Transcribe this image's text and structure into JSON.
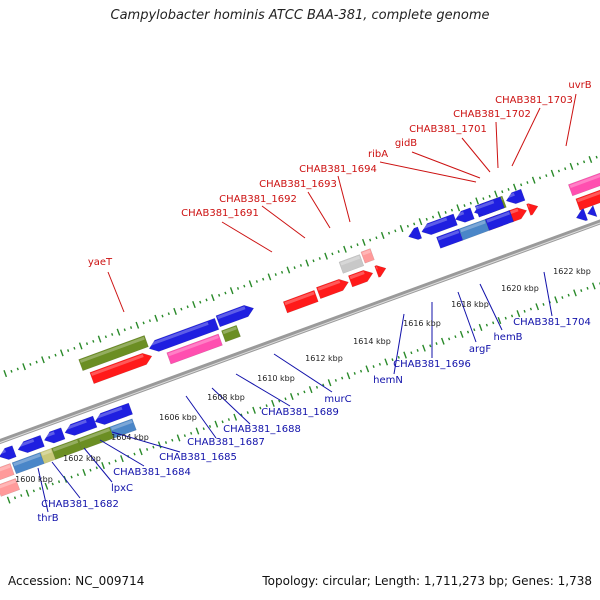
{
  "title": "Campylobacter hominis ATCC BAA-381, complete genome",
  "footer": {
    "accession": "Accession: NC_009714",
    "summary": "Topology: circular; Length: 1,711,273 bp; Genes: 1,738"
  },
  "colors": {
    "backbone": "#9a9a9a",
    "tick": "#2a8a2a",
    "red": "#ff1a1a",
    "pink": "#ff4fb0",
    "blue": "#1f1fe0",
    "steelblue": "#4a86c8",
    "olive": "#6b8e23",
    "khaki": "#c8c87a",
    "lightred": "#ff9a9a",
    "gray": "#c8c8c8",
    "label_top": "#cc1111",
    "label_bottom": "#1111aa"
  },
  "scale_labels": [
    {
      "text": "1600 kbp",
      "kbp": 1600
    },
    {
      "text": "1602 kbp",
      "kbp": 1602
    },
    {
      "text": "1604 kbp",
      "kbp": 1604
    },
    {
      "text": "1606 kbp",
      "kbp": 1606
    },
    {
      "text": "1608 kbp",
      "kbp": 1608
    },
    {
      "text": "1610 kbp",
      "kbp": 1610
    },
    {
      "text": "1612 kbp",
      "kbp": 1612
    },
    {
      "text": "1614 kbp",
      "kbp": 1614
    },
    {
      "text": "1616 kbp",
      "kbp": 1616
    },
    {
      "text": "1618 kbp",
      "kbp": 1618
    },
    {
      "text": "1620 kbp",
      "kbp": 1620
    },
    {
      "text": "1622 kbp",
      "kbp": 1622
    }
  ],
  "top_labels": [
    "yaeT",
    "CHAB381_1691",
    "CHAB381_1692",
    "CHAB381_1693",
    "CHAB381_1694",
    "ribA",
    "gidB",
    "CHAB381_1701",
    "CHAB381_1702",
    "CHAB381_1703",
    "uvrB"
  ],
  "bottom_labels": [
    "thrB",
    "CHAB381_1682",
    "lpxC",
    "CHAB381_1684",
    "CHAB381_1685",
    "CHAB381_1687",
    "CHAB381_1688",
    "CHAB381_1689",
    "murC",
    "hemN",
    "CHAB381_1696",
    "argF",
    "hemB",
    "CHAB381_1704"
  ]
}
